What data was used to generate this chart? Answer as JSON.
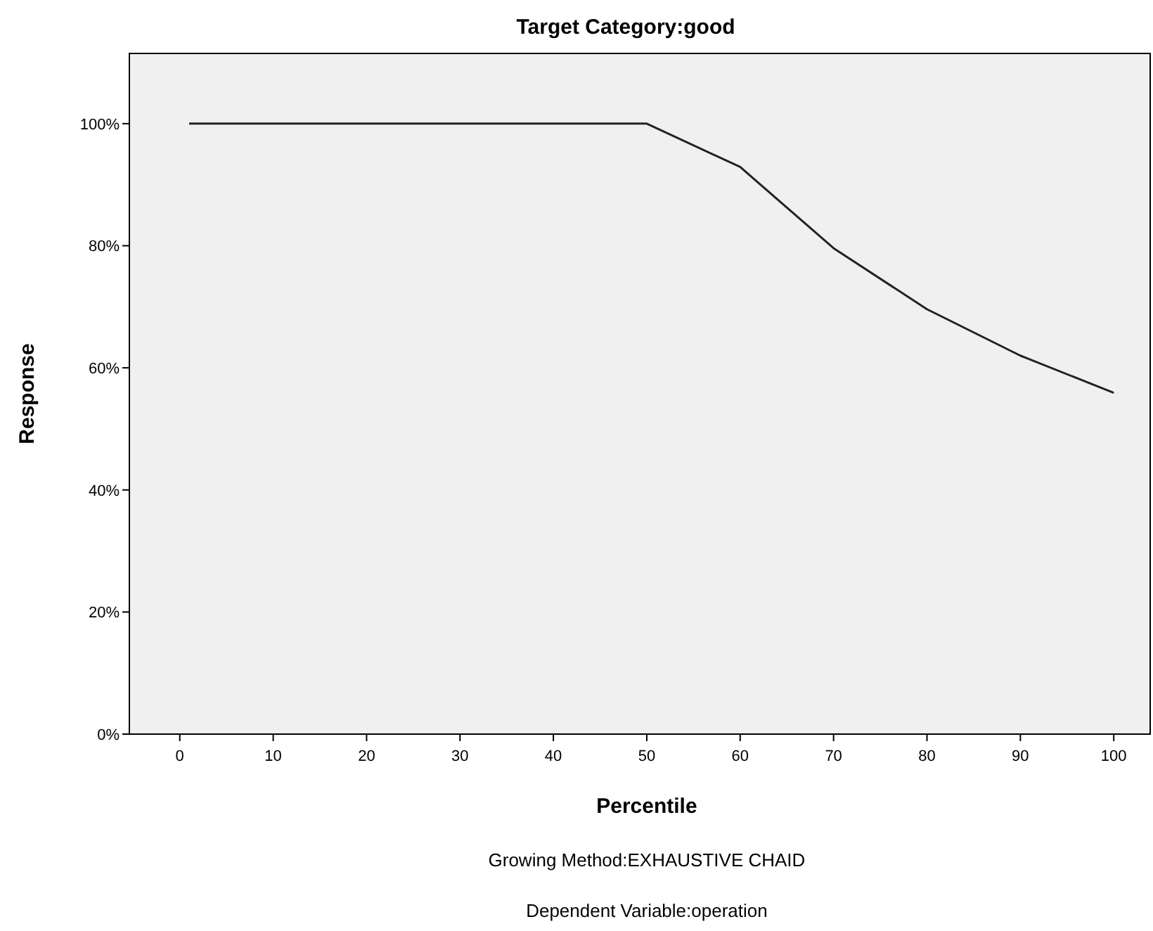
{
  "chart_data": {
    "type": "line",
    "title": "Target Category:good",
    "xlabel": "Percentile",
    "ylabel": "Response",
    "annotations": [
      "Growing Method:EXHAUSTIVE CHAID",
      "Dependent Variable:operation"
    ],
    "x": [
      1,
      10,
      20,
      30,
      40,
      50,
      60,
      70,
      80,
      90,
      100
    ],
    "series": [
      {
        "color": "#222222",
        "values": [
          100,
          100,
          100,
          100,
          100,
          100,
          92.9,
          79.6,
          69.6,
          62.0,
          55.9
        ]
      }
    ],
    "xlim": [
      -5.4,
      103.9
    ],
    "xticks": [
      0,
      10,
      20,
      30,
      40,
      50,
      60,
      70,
      80,
      90,
      100
    ],
    "ylim": [
      0,
      111.5
    ],
    "yticks": [
      {
        "value": 0,
        "label": "0%"
      },
      {
        "value": 20,
        "label": "20%"
      },
      {
        "value": 40,
        "label": "40%"
      },
      {
        "value": 60,
        "label": "60%"
      },
      {
        "value": 80,
        "label": "80%"
      },
      {
        "value": 100,
        "label": "100%"
      }
    ],
    "grid": false,
    "marker": "none",
    "line_style": "solid"
  }
}
